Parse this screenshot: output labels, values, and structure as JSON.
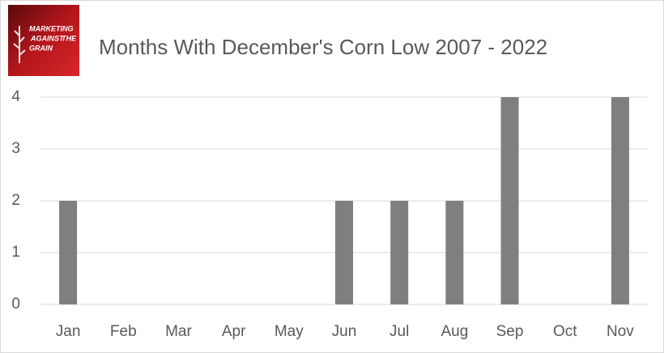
{
  "logo": {
    "lines": [
      "MARKETING",
      "AGAINST",
      "THE",
      "GRAIN"
    ]
  },
  "chart_data": {
    "type": "bar",
    "title": "Months With December's Corn Low 2007 - 2022",
    "categories": [
      "Jan",
      "Feb",
      "Mar",
      "Apr",
      "May",
      "Jun",
      "Jul",
      "Aug",
      "Sep",
      "Oct",
      "Nov"
    ],
    "values": [
      2,
      0,
      0,
      0,
      0,
      2,
      2,
      2,
      4,
      0,
      4
    ],
    "color": "#7f7f7f",
    "ylim": [
      0,
      4
    ],
    "yticks": [
      0,
      1,
      2,
      3,
      4
    ],
    "grid": true
  }
}
